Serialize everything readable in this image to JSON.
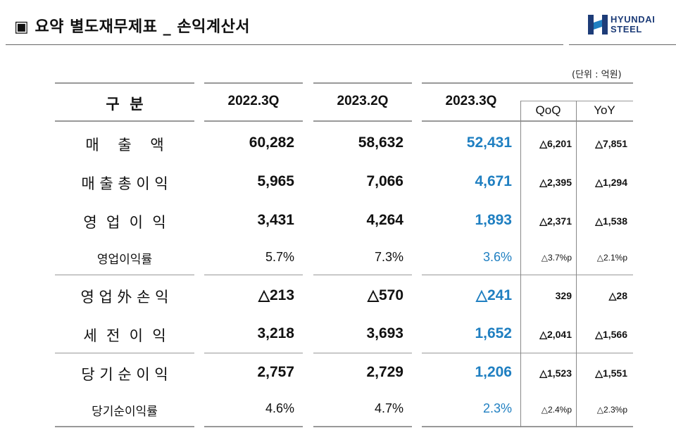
{
  "header": {
    "title": "▣ 요약 별도재무제표 _ 손익계산서",
    "logo_line1": "HYUNDAI",
    "logo_line2": "STEEL",
    "unit": "(단위 : 억원)"
  },
  "table": {
    "col_label": "구  분",
    "col_2022_3q": "2022.3Q",
    "col_2023_2q": "2023.2Q",
    "col_2023_3q": "2023.3Q",
    "col_qoq": "QoQ",
    "col_yoy": "YoY",
    "rows": [
      {
        "label": "매    출    액",
        "v2022_3q": "60,282",
        "v2023_2q": "58,632",
        "v2023_3q": "52,431",
        "qoq": "△6,201",
        "yoy": "△7,851"
      },
      {
        "label": "매 출 총 이 익",
        "v2022_3q": "5,965",
        "v2023_2q": "7,066",
        "v2023_3q": "4,671",
        "qoq": "△2,395",
        "yoy": "△1,294"
      },
      {
        "label": "영  업  이  익",
        "v2022_3q": "3,431",
        "v2023_2q": "4,264",
        "v2023_3q": "1,893",
        "qoq": "△2,371",
        "yoy": "△1,538"
      },
      {
        "label": "영업이익률",
        "v2022_3q": "5.7%",
        "v2023_2q": "7.3%",
        "v2023_3q": "3.6%",
        "qoq": "△3.7%p",
        "yoy": "△2.1%p"
      },
      {
        "label": "영 업 外 손 익",
        "v2022_3q": "△213",
        "v2023_2q": "△570",
        "v2023_3q": "△241",
        "qoq": "329",
        "yoy": "△28"
      },
      {
        "label": "세  전  이  익",
        "v2022_3q": "3,218",
        "v2023_2q": "3,693",
        "v2023_3q": "1,652",
        "qoq": "△2,041",
        "yoy": "△1,566"
      },
      {
        "label": "당 기 순 이 익",
        "v2022_3q": "2,757",
        "v2023_2q": "2,729",
        "v2023_3q": "1,206",
        "qoq": "△1,523",
        "yoy": "△1,551"
      },
      {
        "label": "당기순이익률",
        "v2022_3q": "4.6%",
        "v2023_2q": "4.7%",
        "v2023_3q": "2.3%",
        "qoq": "△2.4%p",
        "yoy": "△2.3%p"
      }
    ]
  },
  "colors": {
    "highlight_value": "#1f7fc1",
    "logo": "#1d3c78",
    "rule": "#999999"
  }
}
